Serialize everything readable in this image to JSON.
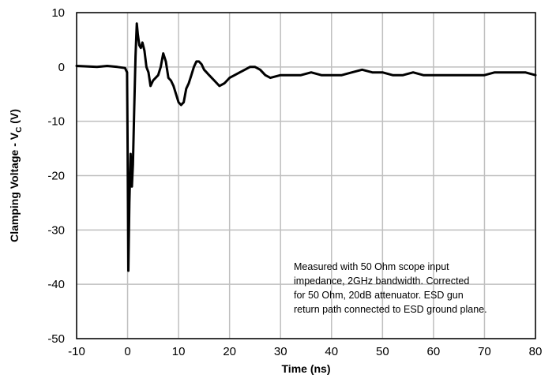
{
  "chart_data": {
    "type": "line",
    "title": "",
    "xlabel": "Time (ns)",
    "ylabel_main": "Clamping Voltage - V",
    "ylabel_sub": "C",
    "ylabel_tail": " (V)",
    "xlim": [
      -10,
      80
    ],
    "ylim": [
      -50,
      10
    ],
    "x_ticks": [
      -10,
      0,
      10,
      20,
      30,
      40,
      50,
      60,
      70,
      80
    ],
    "y_ticks": [
      -50,
      -40,
      -30,
      -20,
      -10,
      0,
      10
    ],
    "grid": true,
    "legend": "none",
    "line_color": "#000000",
    "annotation": [
      "Measured with 50 Ohm scope input",
      "impedance, 2GHz bandwidth. Corrected",
      "for 50 Ohm, 20dB attenuator. ESD gun",
      "return path connected to ESD ground plane."
    ],
    "series": [
      {
        "x": [
          -10,
          -8,
          -6,
          -4,
          -2,
          -0.5,
          -0.1,
          0,
          0.15,
          0.35,
          0.6,
          0.85,
          1.05,
          1.3,
          1.55,
          1.8,
          2.0,
          2.3,
          2.6,
          2.9,
          3.3,
          3.7,
          4.1,
          4.5,
          5.0,
          5.5,
          6.0,
          6.5,
          7.0,
          7.5,
          8.0,
          8.5,
          9.0,
          9.5,
          10.0,
          10.5,
          11.0,
          11.5,
          12.0,
          12.5,
          13.0,
          13.5,
          14.0,
          14.5,
          15.0,
          15.5,
          16.0,
          17.0,
          18.0,
          19.0,
          20.0,
          21.0,
          22.0,
          23.0,
          24.0,
          25.0,
          26.0,
          27.0,
          28.0,
          30.0,
          32.0,
          34.0,
          36.0,
          38.0,
          40.0,
          42.0,
          44.0,
          46.0,
          48.0,
          50.0,
          52.0,
          54.0,
          56.0,
          58.0,
          60.0,
          62.0,
          64.0,
          66.0,
          68.0,
          70.0,
          72.0,
          74.0,
          76.0,
          78.0,
          80.0
        ],
        "y": [
          0.2,
          0.1,
          0,
          0.2,
          0,
          -0.2,
          -1,
          -15,
          -37.5,
          -25,
          -16,
          -22,
          -18,
          -8,
          2,
          8,
          6,
          4,
          3.5,
          4.5,
          3,
          0,
          -1,
          -3.5,
          -2.5,
          -2,
          -1.5,
          0,
          2.5,
          1,
          -2,
          -2.5,
          -3.5,
          -5,
          -6.5,
          -7,
          -6.5,
          -4,
          -3,
          -1.5,
          0,
          1,
          1,
          0.5,
          -0.5,
          -1,
          -1.5,
          -2.5,
          -3.5,
          -3,
          -2,
          -1.5,
          -1,
          -0.5,
          0,
          0,
          -0.5,
          -1.5,
          -2,
          -1.5,
          -1.5,
          -1.5,
          -1,
          -1.5,
          -1.5,
          -1.5,
          -1,
          -0.5,
          -1,
          -1,
          -1.5,
          -1.5,
          -1,
          -1.5,
          -1.5,
          -1.5,
          -1.5,
          -1.5,
          -1.5,
          -1.5,
          -1,
          -1,
          -1,
          -1,
          -1.5
        ]
      }
    ]
  }
}
